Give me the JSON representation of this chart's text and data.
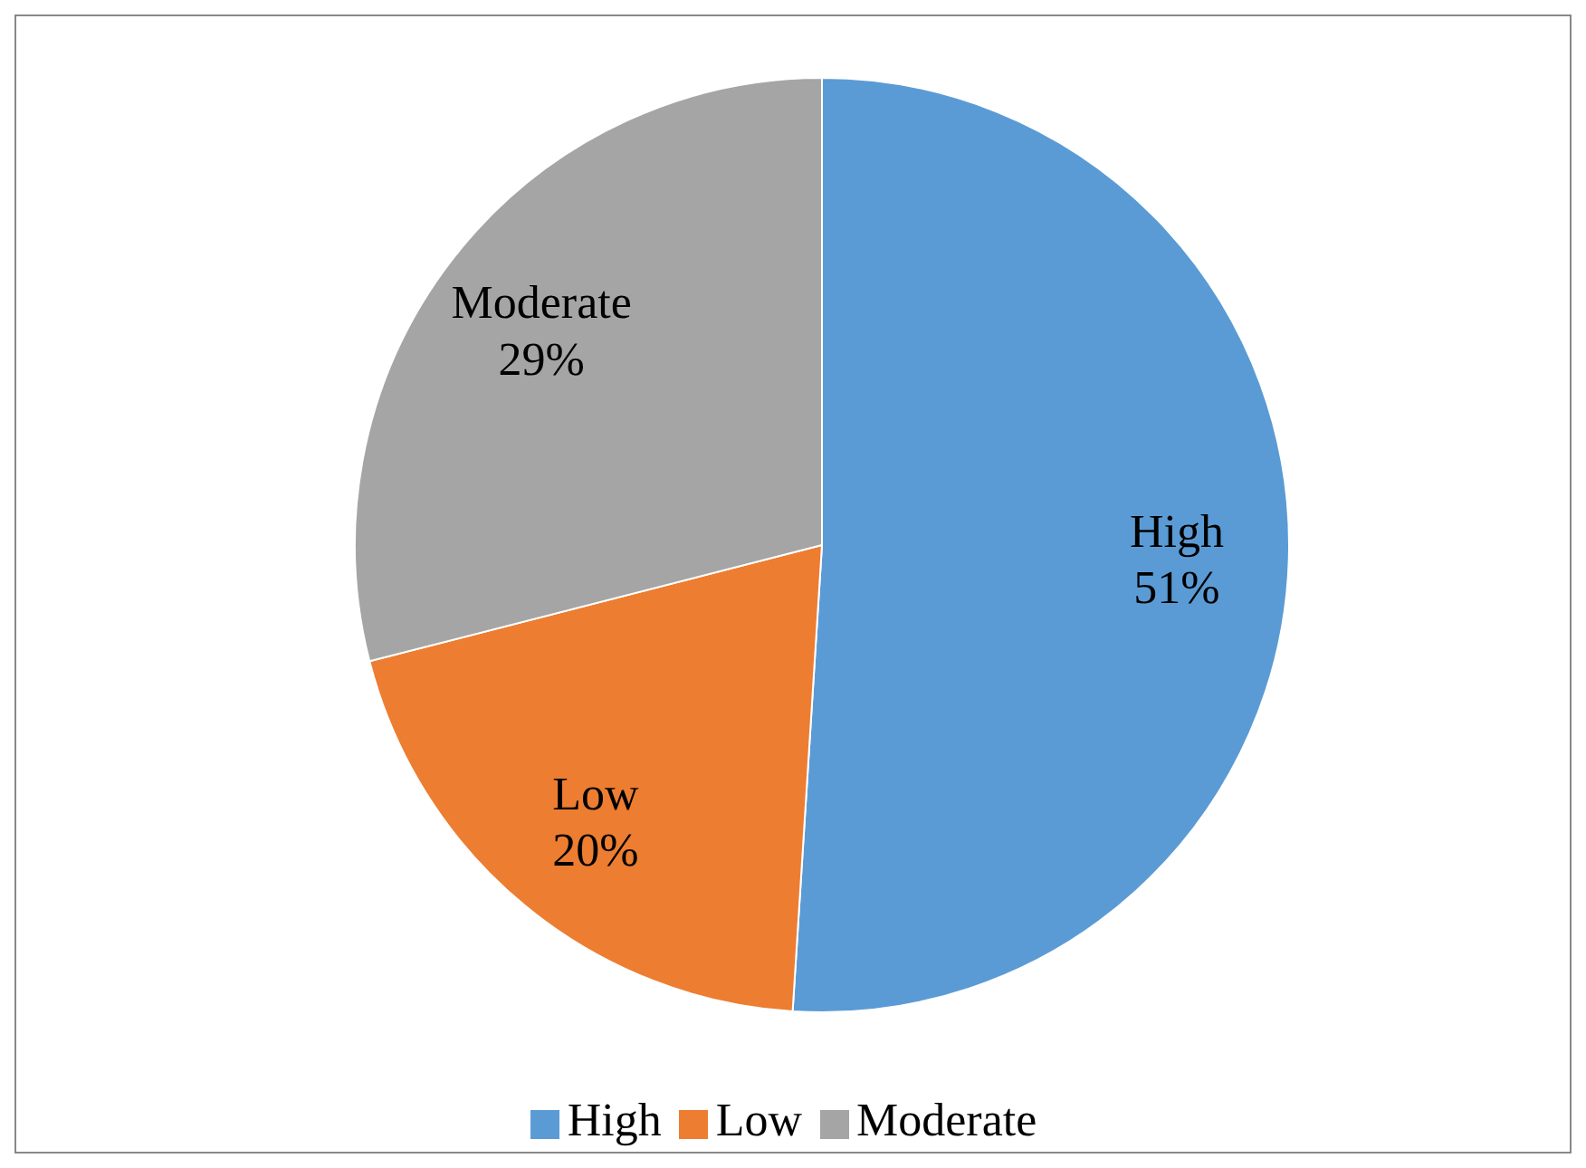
{
  "chart_data": {
    "type": "pie",
    "categories": [
      "High",
      "Low",
      "Moderate"
    ],
    "values": [
      51,
      20,
      29
    ],
    "colors": [
      "#5b9bd5",
      "#ed7d31",
      "#a5a5a5"
    ],
    "value_labels": [
      "51%",
      "20%",
      "29%"
    ],
    "legend": "bottom"
  }
}
